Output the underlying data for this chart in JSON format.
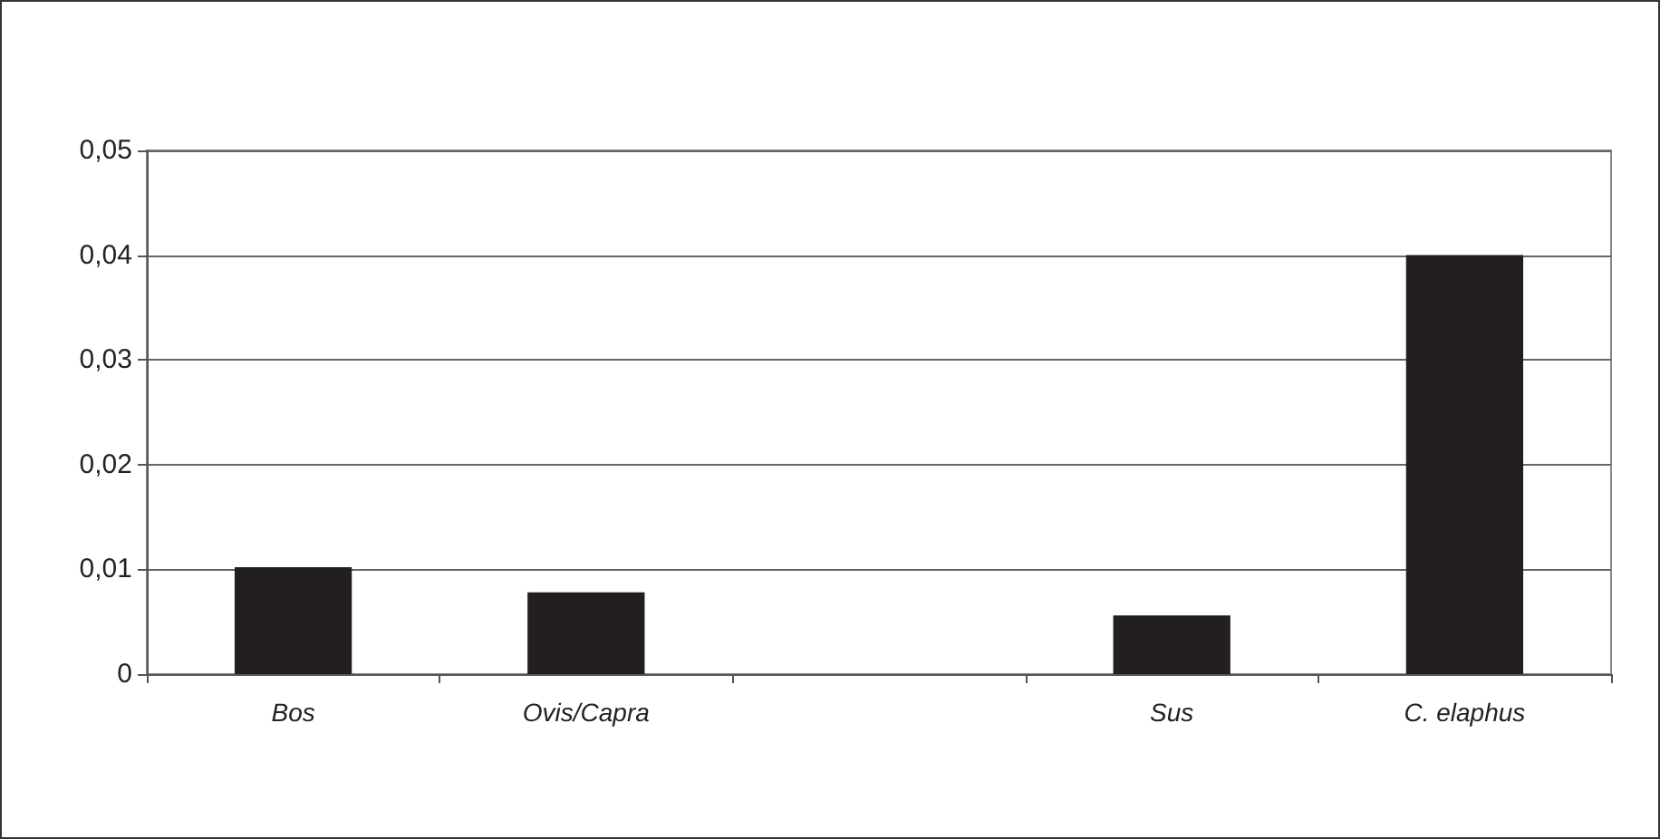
{
  "chart_data": {
    "type": "bar",
    "categories": [
      "Bos",
      "Ovis/Capra",
      null,
      "Sus",
      "C. elaphus"
    ],
    "values": [
      0.0102,
      0.0078,
      null,
      0.0056,
      0.04
    ],
    "color": "#231f20",
    "ylim": [
      0,
      0.05
    ],
    "yticks": [
      {
        "value": 0,
        "label": "0"
      },
      {
        "value": 0.01,
        "label": "0,01"
      },
      {
        "value": 0.02,
        "label": "0,02"
      },
      {
        "value": 0.03,
        "label": "0,03"
      },
      {
        "value": 0.04,
        "label": "0,04"
      },
      {
        "value": 0.05,
        "label": "0,05"
      }
    ],
    "grid": "y"
  }
}
